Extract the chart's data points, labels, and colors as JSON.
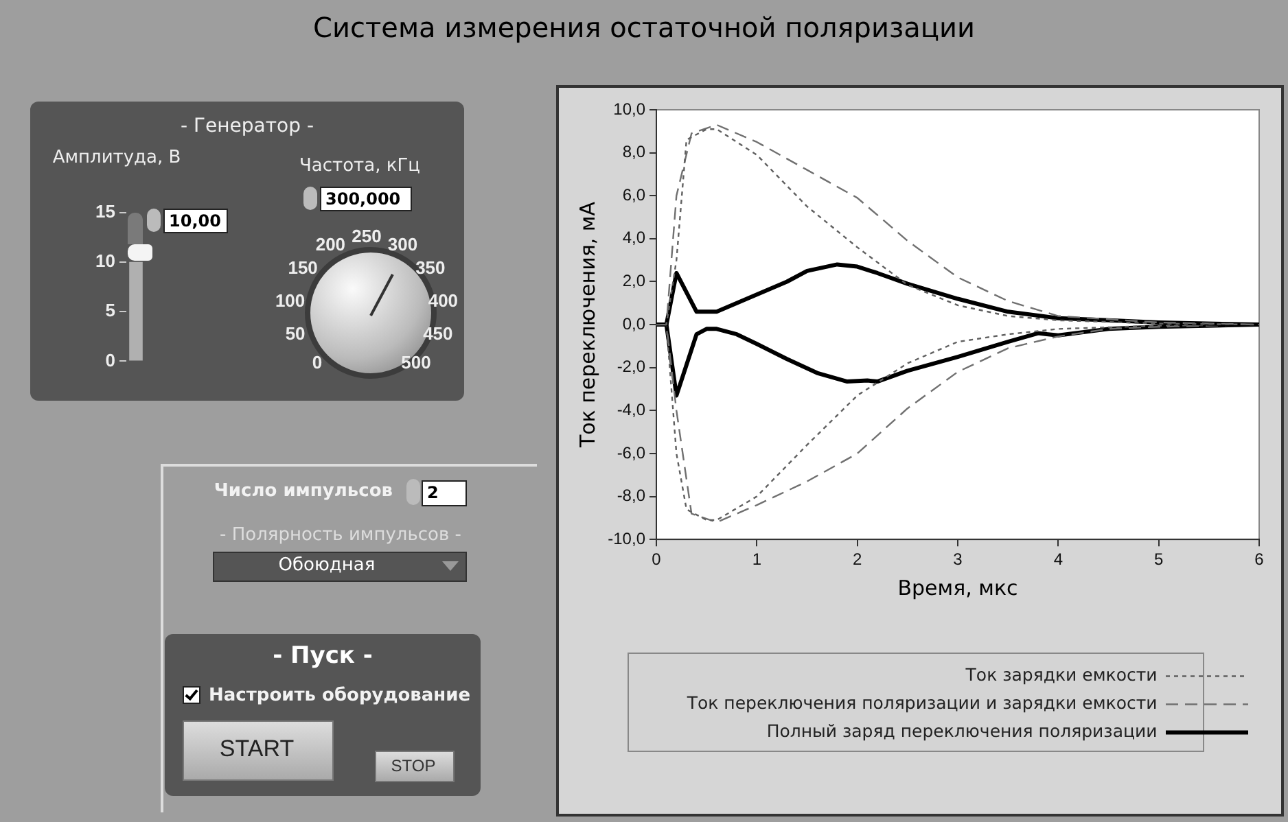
{
  "chart_data": [
    {
      "type": "line",
      "title": "Система измерения остаточной поляризации",
      "xlabel": "Время, мкс",
      "ylabel": "Ток переключения, мА",
      "xlim": [
        0,
        6
      ],
      "xticks": [
        0,
        1,
        2,
        3,
        4,
        5,
        6
      ],
      "ylim": [
        -10,
        10
      ],
      "yticks": [
        {
          "value": -10,
          "label": "-10,0"
        },
        {
          "value": -8,
          "label": "-8,0"
        },
        {
          "value": -6,
          "label": "-6,0"
        },
        {
          "value": -4,
          "label": "-4,0"
        },
        {
          "value": -2,
          "label": "-2,0"
        },
        {
          "value": 0,
          "label": "0,0"
        },
        {
          "value": 2,
          "label": "2,0"
        },
        {
          "value": 4,
          "label": "4,0"
        },
        {
          "value": 6,
          "label": "6,0"
        },
        {
          "value": 8,
          "label": "8,0"
        },
        {
          "value": 10,
          "label": "10,0"
        }
      ],
      "grid": false,
      "legend": "bottom",
      "marker": "none",
      "series": [
        {
          "name": "Ток зарядки емкости",
          "color": "#606060",
          "line_style": "dotted",
          "x": [
            0,
            0.1,
            0.2,
            0.3,
            0.5,
            0.6,
            1.0,
            1.5,
            2.0,
            2.5,
            3.0,
            3.5,
            4.0,
            5.0,
            6.0
          ],
          "values": [
            0,
            0,
            3.0,
            8.6,
            9.1,
            9.1,
            7.9,
            5.5,
            3.6,
            1.85,
            0.9,
            0.4,
            0.2,
            0.05,
            0
          ]
        },
        {
          "name": "Ток переключения поляризации и зарядки емкости",
          "color": "#707070",
          "line_style": "dashed",
          "x": [
            0,
            0.1,
            0.15,
            0.2,
            0.35,
            0.6,
            1.0,
            1.5,
            2.0,
            2.5,
            3.0,
            3.5,
            4.0,
            4.5,
            5.0,
            6.0
          ],
          "values": [
            0,
            0,
            3.0,
            6.0,
            8.9,
            9.3,
            8.5,
            7.2,
            5.9,
            3.9,
            2.2,
            1.1,
            0.4,
            0.25,
            0.1,
            0
          ]
        },
        {
          "name": "Полный заряд переключения поляризации",
          "color": "#000000",
          "line_style": "solid",
          "x": [
            0,
            0.1,
            0.2,
            0.4,
            0.6,
            1.0,
            1.3,
            1.5,
            1.8,
            2.0,
            2.2,
            2.5,
            3.0,
            3.5,
            4.0,
            4.5,
            5.0,
            6.0
          ],
          "values": [
            0,
            0,
            2.4,
            0.6,
            0.6,
            1.4,
            2.0,
            2.5,
            2.8,
            2.7,
            2.4,
            1.9,
            1.2,
            0.6,
            0.3,
            0.2,
            0.1,
            0
          ]
        },
        {
          "color": "#606060",
          "line_style": "dotted",
          "x": [
            0,
            0.1,
            0.2,
            0.3,
            0.5,
            0.6,
            1.0,
            1.5,
            2.0,
            2.5,
            3.0,
            3.5,
            4.0,
            5.0,
            6.0
          ],
          "values": [
            0,
            0,
            -6.0,
            -8.6,
            -9.1,
            -9.1,
            -8.0,
            -5.6,
            -3.3,
            -1.8,
            -0.8,
            -0.45,
            -0.2,
            -0.05,
            0
          ]
        },
        {
          "color": "#707070",
          "line_style": "dashed",
          "x": [
            0,
            0.1,
            0.2,
            0.35,
            0.6,
            1.0,
            1.5,
            2.0,
            2.5,
            3.0,
            3.5,
            4.0,
            4.5,
            5.0,
            6.0
          ],
          "values": [
            0,
            0,
            -4.0,
            -8.8,
            -9.2,
            -8.4,
            -7.3,
            -6.0,
            -3.9,
            -2.2,
            -1.1,
            -0.55,
            -0.2,
            -0.1,
            0
          ]
        },
        {
          "color": "#000000",
          "line_style": "solid",
          "x": [
            0,
            0.1,
            0.2,
            0.4,
            0.5,
            0.6,
            0.8,
            1.0,
            1.3,
            1.6,
            1.9,
            2.1,
            2.2,
            2.5,
            3.0,
            3.5,
            3.8,
            4.0,
            4.5,
            5.0,
            6.0
          ],
          "values": [
            0,
            0,
            -3.3,
            -0.45,
            -0.2,
            -0.2,
            -0.45,
            -0.9,
            -1.6,
            -2.25,
            -2.65,
            -2.6,
            -2.65,
            -2.15,
            -1.5,
            -0.8,
            -0.4,
            -0.5,
            -0.2,
            -0.1,
            0
          ]
        }
      ]
    },
    {
      "type": "other",
      "annotations": [
        "- Генератор -",
        "Амплитуда, В",
        "10,00",
        "Частота, кГц",
        "300,000",
        "0",
        "50",
        "100",
        "150",
        "200",
        "250",
        "300",
        "350",
        "400",
        "450",
        "500",
        "Число импульсов",
        "2",
        "- Полярность импульсов -",
        "Обоюдная",
        "- Пуск -",
        "Настроить оборудование",
        "START",
        "STOP"
      ]
    },
    {
      "type": "bar",
      "categories": [
        null
      ],
      "values": [
        10
      ],
      "color": "#b0b0b0",
      "ylim": [
        0,
        15
      ],
      "yticks": [
        0,
        5,
        10,
        15
      ],
      "grid": false
    }
  ]
}
